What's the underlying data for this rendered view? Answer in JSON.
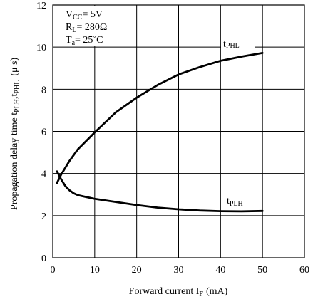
{
  "chart_data": {
    "type": "line",
    "xlabel": "Forward current I",
    "xlabel_sub": "F",
    "xlabel_unit": "(mA)",
    "ylabel": "Propagation delay time t",
    "ylabel_sub1": "PLH",
    "ylabel_mid": ",t",
    "ylabel_sub2": "PHL",
    "ylabel_unit": "(μ s)",
    "xlim": [
      0,
      60
    ],
    "ylim": [
      0,
      12
    ],
    "x_ticks": [
      "0",
      "10",
      "20",
      "30",
      "40",
      "50",
      "60"
    ],
    "y_ticks": [
      "0",
      "2",
      "4",
      "6",
      "8",
      "10",
      "12"
    ],
    "grid": true,
    "conditions": [
      {
        "main": "V",
        "sub": "CC",
        "rest": "= 5V"
      },
      {
        "main": "R",
        "sub": "L",
        "rest": "= 280Ω"
      },
      {
        "main": "T",
        "sub": "a",
        "rest": "= 25˚C"
      }
    ],
    "series": [
      {
        "name": "t",
        "name_sub": "PHL",
        "x": [
          1,
          2,
          4,
          6,
          8,
          10,
          15,
          20,
          25,
          30,
          35,
          40,
          45,
          50
        ],
        "y": [
          3.55,
          3.95,
          4.6,
          5.15,
          5.55,
          5.95,
          6.9,
          7.6,
          8.2,
          8.7,
          9.05,
          9.35,
          9.55,
          9.72
        ]
      },
      {
        "name": "t",
        "name_sub": "PLH",
        "x": [
          1,
          2,
          3,
          4,
          5,
          6,
          8,
          10,
          15,
          20,
          25,
          30,
          35,
          40,
          45,
          50
        ],
        "y": [
          4.1,
          3.72,
          3.4,
          3.2,
          3.06,
          2.97,
          2.88,
          2.8,
          2.65,
          2.5,
          2.38,
          2.3,
          2.24,
          2.21,
          2.2,
          2.22
        ]
      }
    ]
  }
}
